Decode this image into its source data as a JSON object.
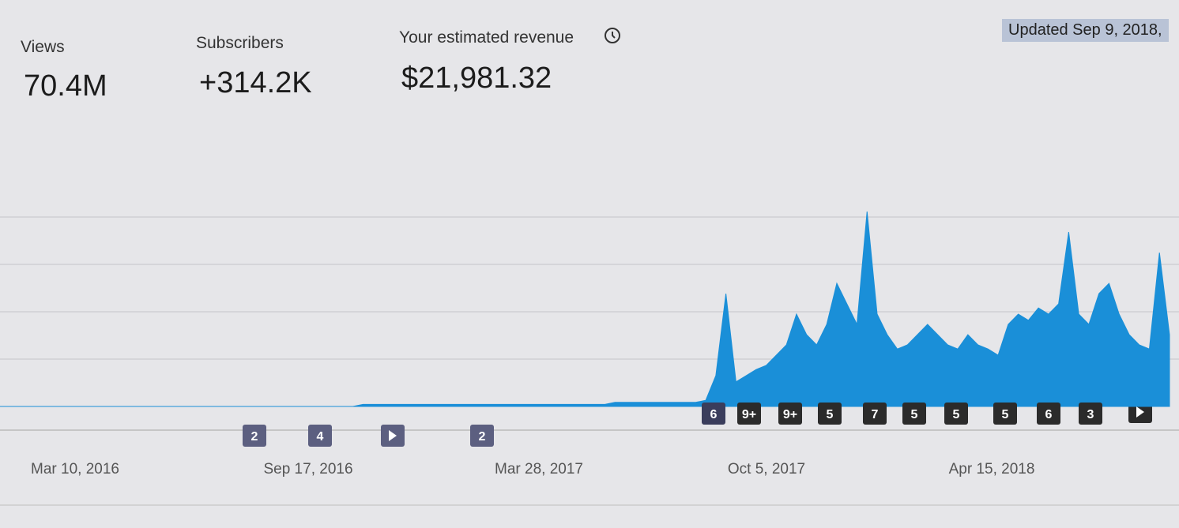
{
  "metrics": [
    {
      "label": "Views",
      "value": "70.4M"
    },
    {
      "label": "Subscribers",
      "value": "+314.2K"
    },
    {
      "label": "Your estimated revenue",
      "value": "$21,981.32"
    }
  ],
  "updated": "Updated Sep 9, 2018,",
  "chart_data": {
    "type": "area",
    "color": "#1a8fd8",
    "ylim": [
      0,
      100
    ],
    "values": [
      0,
      0,
      0,
      0,
      0,
      0,
      0,
      0,
      0,
      0,
      0,
      0,
      0,
      0,
      0,
      0,
      0,
      0,
      0,
      0,
      0,
      0,
      0,
      0,
      0,
      0,
      0,
      0,
      0,
      0,
      0,
      0,
      0,
      0,
      0,
      0,
      1,
      1,
      1,
      1,
      1,
      1,
      1,
      1,
      1,
      1,
      1,
      1,
      1,
      1,
      1,
      1,
      1,
      1,
      1,
      1,
      1,
      1,
      1,
      1,
      1,
      2,
      2,
      2,
      2,
      2,
      2,
      2,
      2,
      2,
      3,
      15,
      55,
      12,
      15,
      18,
      20,
      25,
      30,
      45,
      35,
      30,
      40,
      60,
      50,
      40,
      95,
      45,
      35,
      28,
      30,
      35,
      40,
      35,
      30,
      28,
      35,
      30,
      28,
      25,
      40,
      45,
      42,
      48,
      45,
      50,
      85,
      45,
      40,
      55,
      60,
      45,
      35,
      30,
      28,
      75,
      35
    ],
    "xlabels": [
      "Mar 10, 2016",
      "Sep 17, 2016",
      "Mar 28, 2017",
      "Oct 5, 2017",
      "Apr 15, 2018"
    ],
    "markers": [
      "2",
      "4",
      "2",
      "6",
      "9+",
      "9+",
      "5",
      "7",
      "5",
      "5",
      "5",
      "6",
      "3"
    ]
  }
}
